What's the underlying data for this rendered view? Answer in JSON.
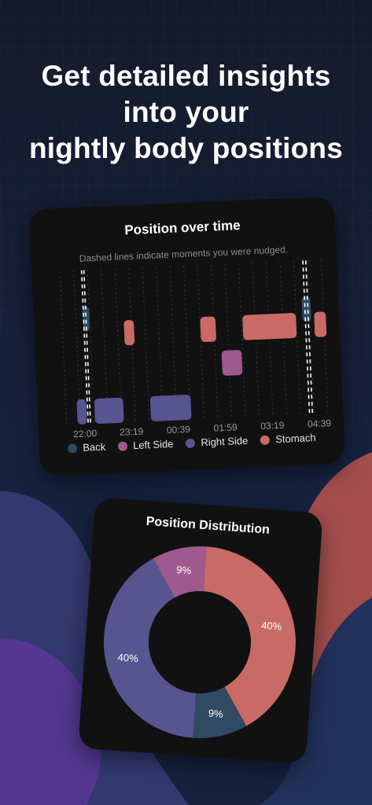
{
  "headline": {
    "line1": "Get detailed insights",
    "line2": "into your",
    "line3": "nightly body positions"
  },
  "colors": {
    "back": "#2f4a62",
    "left_side": "#9e5a8e",
    "right_side": "#565590",
    "stomach": "#c86a66",
    "card": "#111111",
    "text": "#ffffff",
    "muted": "#8a8a8a"
  },
  "timeline_card": {
    "title": "Position over time",
    "subtitle": "Dashed lines indicate moments you were nudged.",
    "legend": [
      {
        "label": "Back",
        "color": "#2f4a62"
      },
      {
        "label": "Left Side",
        "color": "#9e5a8e"
      },
      {
        "label": "Right Side",
        "color": "#565590"
      },
      {
        "label": "Stomach",
        "color": "#c86a66"
      }
    ]
  },
  "chart_data": [
    {
      "type": "bar",
      "subtype": "timeline",
      "title": "Position over time",
      "annotation": "Dashed lines indicate moments you were nudged.",
      "x_ticks": [
        "22:00",
        "23:19",
        "00:39",
        "01:59",
        "03:19",
        "04:39"
      ],
      "categories": [
        "Back",
        "Left Side",
        "Right Side",
        "Stomach"
      ],
      "segments": [
        {
          "position": "Right Side",
          "start": "21:48",
          "end": "22:04"
        },
        {
          "position": "Back",
          "start": "22:05",
          "end": "22:12"
        },
        {
          "position": "Right Side",
          "start": "22:18",
          "end": "23:07"
        },
        {
          "position": "Stomach",
          "start": "23:14",
          "end": "23:31"
        },
        {
          "position": "Right Side",
          "start": "23:53",
          "end": "01:02"
        },
        {
          "position": "Stomach",
          "start": "01:24",
          "end": "01:50"
        },
        {
          "position": "Left Side",
          "start": "01:58",
          "end": "02:32"
        },
        {
          "position": "Stomach",
          "start": "02:36",
          "end": "04:07"
        },
        {
          "position": "Back",
          "start": "04:18",
          "end": "04:33"
        },
        {
          "position": "Stomach",
          "start": "04:38",
          "end": "04:58"
        }
      ],
      "nudges": [
        "22:06",
        "22:10",
        "04:23",
        "04:28"
      ],
      "legend": [
        "Back",
        "Left Side",
        "Right Side",
        "Stomach"
      ],
      "legend_position": "bottom"
    },
    {
      "type": "pie",
      "subtype": "donut",
      "title": "Position Distribution",
      "slices": [
        {
          "position": "Stomach",
          "value": 40,
          "label": "40%"
        },
        {
          "position": "Back",
          "value": 9,
          "label": "9%"
        },
        {
          "position": "Right Side",
          "value": 40,
          "label": "40%"
        },
        {
          "position": "Left Side",
          "value": 9,
          "label": "9%"
        }
      ]
    }
  ],
  "distribution_card": {
    "title": "Position Distribution"
  }
}
